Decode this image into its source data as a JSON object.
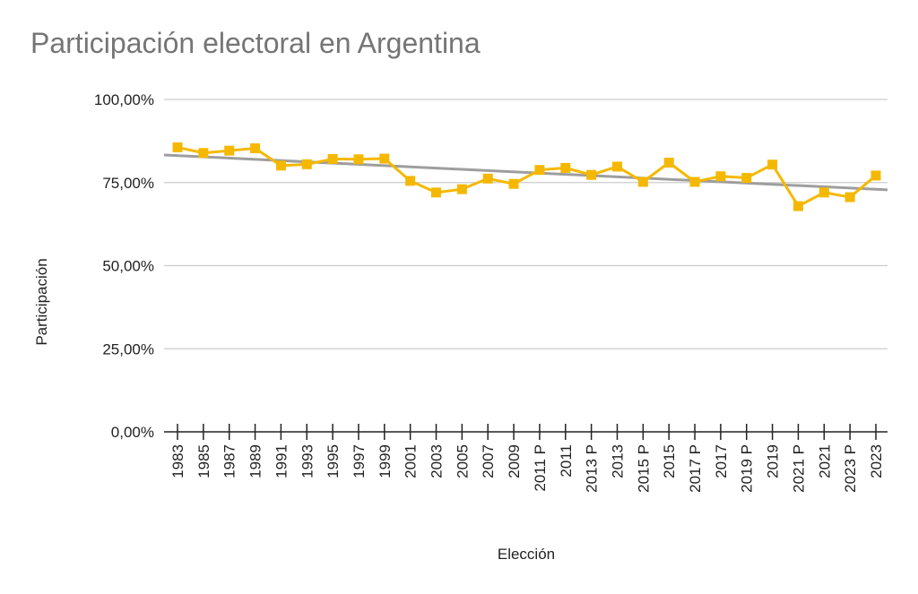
{
  "chart_data": {
    "type": "line",
    "title": "Participación electoral en Argentina",
    "xlabel": "Elección",
    "ylabel": "Participación",
    "ylim": [
      0,
      100
    ],
    "yticks": [
      "0,00%",
      "25,00%",
      "50,00%",
      "75,00%",
      "100,00%"
    ],
    "grid": true,
    "legend": "none",
    "categories": [
      "1983",
      "1985",
      "1987",
      "1989",
      "1991",
      "1993",
      "1995",
      "1997",
      "1999",
      "2001",
      "2003",
      "2005",
      "2007",
      "2009",
      "2011 P",
      "2011",
      "2013 P",
      "2013",
      "2015 P",
      "2015",
      "2017 P",
      "2017",
      "2019 P",
      "2019",
      "2021 P",
      "2021",
      "2023 P",
      "2023"
    ],
    "series": [
      {
        "values": [
          85.6,
          83.9,
          84.6,
          85.3,
          80.1,
          80.5,
          82.1,
          82.0,
          82.2,
          75.5,
          72.0,
          73.0,
          76.2,
          74.6,
          78.8,
          79.4,
          77.3,
          79.8,
          75.2,
          81.0,
          75.2,
          76.9,
          76.4,
          80.4,
          67.9,
          72.0,
          70.6,
          77.1
        ],
        "color": "#F5B800"
      }
    ],
    "trendline": {
      "start": 83.3,
      "end": 72.8,
      "color": "#9E9E9E"
    }
  }
}
